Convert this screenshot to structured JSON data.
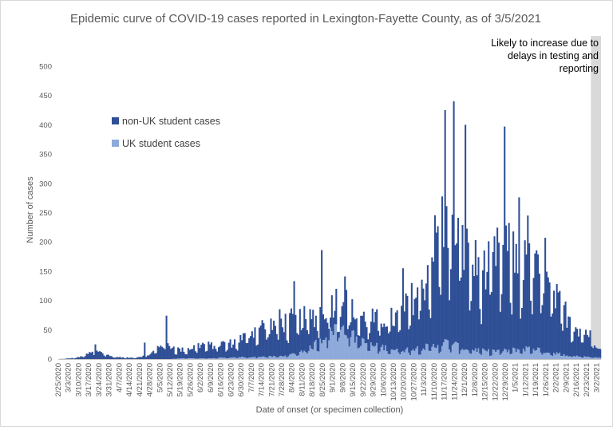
{
  "chart_data": {
    "type": "bar",
    "stacked": true,
    "title": "Epidemic curve of COVID-19 cases reported in Lexington-Fayette County, as of 3/5/2021",
    "xlabel": "Date of onset (or specimen collection)",
    "ylabel": "Number of cases",
    "ylim": [
      0,
      500
    ],
    "yticks": [
      "0",
      "50",
      "100",
      "150",
      "200",
      "250",
      "300",
      "350",
      "400",
      "450",
      "500"
    ],
    "grid": false,
    "legend_position": "left-upper",
    "x_tick_labels": [
      "2/25/2020",
      "3/3/2020",
      "3/10/2020",
      "3/17/2020",
      "3/24/2020",
      "3/31/2020",
      "4/7/2020",
      "4/14/2020",
      "4/21/2020",
      "4/28/2020",
      "5/5/2020",
      "5/12/2020",
      "5/19/2020",
      "5/26/2020",
      "6/2/2020",
      "6/9/2020",
      "6/16/2020",
      "6/23/2020",
      "6/30/2020",
      "7/7/2020",
      "7/14/2020",
      "7/21/2020",
      "7/28/2020",
      "8/4/2020",
      "8/11/2020",
      "8/18/2020",
      "8/25/2020",
      "9/1/2020",
      "9/8/2020",
      "9/15/2020",
      "9/22/2020",
      "9/29/2020",
      "10/6/2020",
      "10/13/2020",
      "10/20/2020",
      "10/27/2020",
      "11/3/2020",
      "11/10/2020",
      "11/17/2020",
      "11/24/2020",
      "12/1/2020",
      "12/8/2020",
      "12/15/2020",
      "12/22/2020",
      "12/29/2020",
      "1/5/2021",
      "1/12/2021",
      "1/19/2021",
      "1/26/2021",
      "2/2/2021",
      "2/9/2021",
      "2/16/2021",
      "2/23/2021",
      "3/2/2021"
    ],
    "weekly_series": [
      {
        "name": "non-UK student cases",
        "color": "#2f4f96",
        "values": [
          0,
          1,
          3,
          10,
          14,
          5,
          3,
          2,
          4,
          8,
          25,
          22,
          14,
          18,
          24,
          22,
          24,
          25,
          33,
          45,
          52,
          55,
          57,
          60,
          55,
          52,
          50,
          48,
          42,
          40,
          42,
          45,
          50,
          52,
          68,
          92,
          115,
          175,
          215,
          210,
          165,
          145,
          135,
          160,
          170,
          155,
          142,
          130,
          115,
          90,
          70,
          50,
          42,
          22
        ]
      },
      {
        "name": "UK student cases",
        "color": "#8eaadb",
        "values": [
          0,
          0,
          0,
          0,
          0,
          0,
          0,
          0,
          0,
          0,
          0,
          0,
          1,
          1,
          1,
          1,
          2,
          2,
          3,
          3,
          4,
          4,
          5,
          8,
          14,
          22,
          38,
          52,
          60,
          38,
          28,
          22,
          20,
          16,
          16,
          18,
          20,
          22,
          28,
          24,
          18,
          16,
          13,
          14,
          14,
          16,
          18,
          18,
          12,
          10,
          6,
          5,
          4,
          2
        ]
      }
    ],
    "peaks": [
      {
        "date": "3/21/2020",
        "value": 25
      },
      {
        "date": "4/24/2020",
        "value": 28
      },
      {
        "date": "5/9/2020",
        "value": 74
      },
      {
        "date": "7/26/2020",
        "value": 85
      },
      {
        "date": "8/5/2020",
        "value": 133
      },
      {
        "date": "8/24/2020",
        "value": 186
      },
      {
        "date": "9/9/2020",
        "value": 141
      },
      {
        "date": "10/19/2020",
        "value": 155
      },
      {
        "date": "11/17/2020",
        "value": 425
      },
      {
        "date": "11/23/2020",
        "value": 440
      },
      {
        "date": "12/1/2020",
        "value": 400
      },
      {
        "date": "12/28/2020",
        "value": 397
      },
      {
        "date": "1/7/2021",
        "value": 276
      },
      {
        "date": "1/13/2021",
        "value": 245
      },
      {
        "date": "1/25/2021",
        "value": 207
      }
    ],
    "shaded_region": {
      "start": "2/26/2021",
      "end": "3/4/2021",
      "color": "#d9d9d9"
    }
  },
  "legend": [
    {
      "label": "non-UK student cases",
      "color": "#2f4f96"
    },
    {
      "label": "UK student cases",
      "color": "#8eaadb"
    }
  ],
  "annotation": {
    "lines": [
      "Likely to increase due to",
      "delays in testing and",
      "reporting"
    ]
  }
}
